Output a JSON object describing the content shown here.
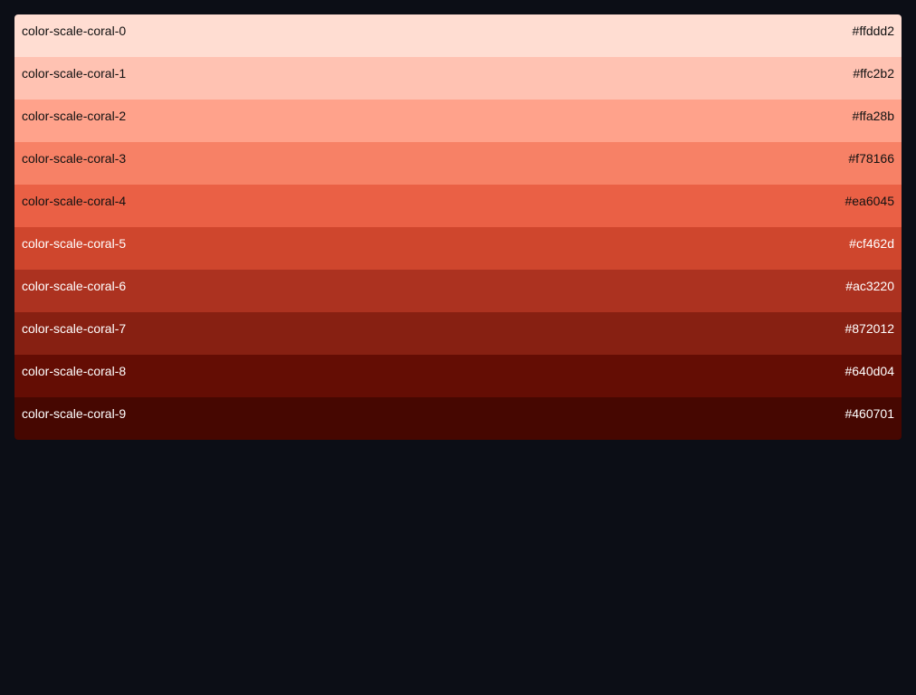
{
  "palette": {
    "swatches": [
      {
        "name": "color-scale-coral-0",
        "hex": "#ffddd2",
        "text_color": "#111111"
      },
      {
        "name": "color-scale-coral-1",
        "hex": "#ffc2b2",
        "text_color": "#111111"
      },
      {
        "name": "color-scale-coral-2",
        "hex": "#ffa28b",
        "text_color": "#111111"
      },
      {
        "name": "color-scale-coral-3",
        "hex": "#f78166",
        "text_color": "#111111"
      },
      {
        "name": "color-scale-coral-4",
        "hex": "#ea6045",
        "text_color": "#111111"
      },
      {
        "name": "color-scale-coral-5",
        "hex": "#cf462d",
        "text_color": "#ffffff"
      },
      {
        "name": "color-scale-coral-6",
        "hex": "#ac3220",
        "text_color": "#ffffff"
      },
      {
        "name": "color-scale-coral-7",
        "hex": "#872012",
        "text_color": "#ffffff"
      },
      {
        "name": "color-scale-coral-8",
        "hex": "#640d04",
        "text_color": "#ffffff"
      },
      {
        "name": "color-scale-coral-9",
        "hex": "#460701",
        "text_color": "#ffffff"
      }
    ]
  }
}
